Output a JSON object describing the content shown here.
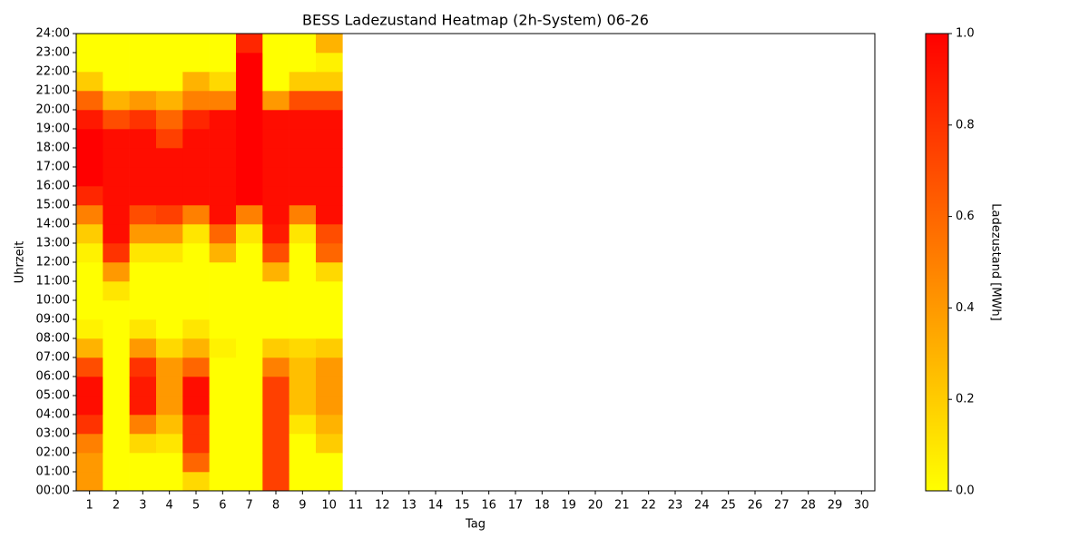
{
  "chart_data": {
    "type": "heatmap",
    "title": "BESS Ladezustand Heatmap (2h-System) 06-26",
    "xlabel": "Tag",
    "ylabel": "Uhrzeit",
    "x": [
      1,
      2,
      3,
      4,
      5,
      6,
      7,
      8,
      9,
      10,
      11,
      12,
      13,
      14,
      15,
      16,
      17,
      18,
      19,
      20,
      21,
      22,
      23,
      24,
      25,
      26,
      27,
      28,
      29,
      30
    ],
    "ylim": [
      0,
      24
    ],
    "yticks": [
      {
        "value": 0,
        "label": "00:00"
      },
      {
        "value": 1,
        "label": "01:00"
      },
      {
        "value": 2,
        "label": "02:00"
      },
      {
        "value": 3,
        "label": "03:00"
      },
      {
        "value": 4,
        "label": "04:00"
      },
      {
        "value": 5,
        "label": "05:00"
      },
      {
        "value": 6,
        "label": "06:00"
      },
      {
        "value": 7,
        "label": "07:00"
      },
      {
        "value": 8,
        "label": "08:00"
      },
      {
        "value": 9,
        "label": "09:00"
      },
      {
        "value": 10,
        "label": "10:00"
      },
      {
        "value": 11,
        "label": "11:00"
      },
      {
        "value": 12,
        "label": "12:00"
      },
      {
        "value": 13,
        "label": "13:00"
      },
      {
        "value": 14,
        "label": "14:00"
      },
      {
        "value": 15,
        "label": "15:00"
      },
      {
        "value": 16,
        "label": "16:00"
      },
      {
        "value": 17,
        "label": "17:00"
      },
      {
        "value": 18,
        "label": "18:00"
      },
      {
        "value": 19,
        "label": "19:00"
      },
      {
        "value": 20,
        "label": "20:00"
      },
      {
        "value": 21,
        "label": "21:00"
      },
      {
        "value": 22,
        "label": "22:00"
      },
      {
        "value": 23,
        "label": "23:00"
      },
      {
        "value": 24,
        "label": "24:00"
      }
    ],
    "colormap": "autumn_r",
    "colorbar": {
      "label": "Ladezustand [MWh]",
      "lim": [
        0,
        1
      ],
      "ticks": [
        {
          "value": 0,
          "label": "0.0"
        },
        {
          "value": 0.2,
          "label": "0.2"
        },
        {
          "value": 0.4,
          "label": "0.4"
        },
        {
          "value": 0.6,
          "label": "0.6"
        },
        {
          "value": 0.8,
          "label": "0.8"
        },
        {
          "value": 1,
          "label": "1.0"
        }
      ]
    },
    "values": [
      [
        0.4,
        0.4,
        0.5,
        0.8,
        0.95,
        0.95,
        0.7,
        0.3,
        0.05,
        0,
        0,
        0,
        0.05,
        0.2,
        0.5,
        0.85,
        1,
        1,
        1,
        0.9,
        0.6,
        0.2,
        0,
        0
      ],
      [
        0,
        0,
        0,
        0,
        0,
        0,
        0,
        0,
        0,
        0,
        0.1,
        0.4,
        0.8,
        0.95,
        0.95,
        0.95,
        0.95,
        0.95,
        0.95,
        0.7,
        0.3,
        0,
        0,
        0
      ],
      [
        0,
        0,
        0.15,
        0.5,
        0.9,
        0.9,
        0.8,
        0.4,
        0.1,
        0,
        0,
        0,
        0.1,
        0.4,
        0.7,
        0.95,
        0.95,
        0.95,
        0.95,
        0.8,
        0.4,
        0,
        0,
        0
      ],
      [
        0,
        0,
        0.1,
        0.25,
        0.4,
        0.4,
        0.4,
        0.15,
        0,
        0,
        0,
        0,
        0.1,
        0.4,
        0.75,
        0.95,
        0.95,
        0.95,
        0.75,
        0.6,
        0.3,
        0,
        0,
        0
      ],
      [
        0.15,
        0.6,
        0.8,
        0.8,
        0.95,
        0.95,
        0.6,
        0.3,
        0.1,
        0,
        0,
        0,
        0,
        0.1,
        0.5,
        0.95,
        0.95,
        0.95,
        0.95,
        0.85,
        0.5,
        0.3,
        0,
        0
      ],
      [
        0,
        0,
        0,
        0,
        0,
        0,
        0,
        0.05,
        0,
        0,
        0,
        0,
        0.3,
        0.6,
        0.95,
        0.95,
        0.95,
        0.95,
        0.95,
        0.95,
        0.5,
        0.15,
        0,
        0
      ],
      [
        0,
        0,
        0,
        0,
        0,
        0,
        0,
        0,
        0,
        0,
        0,
        0,
        0,
        0.1,
        0.5,
        1,
        1,
        1,
        1,
        1,
        1,
        1,
        1,
        0.85
      ],
      [
        0.75,
        0.75,
        0.75,
        0.75,
        0.75,
        0.75,
        0.5,
        0.2,
        0,
        0,
        0,
        0.3,
        0.7,
        0.9,
        0.95,
        0.95,
        0.95,
        0.95,
        0.95,
        0.95,
        0.4,
        0,
        0,
        0
      ],
      [
        0,
        0,
        0,
        0.1,
        0.25,
        0.25,
        0.25,
        0.15,
        0,
        0,
        0,
        0,
        0,
        0.1,
        0.5,
        0.95,
        0.95,
        0.95,
        0.95,
        0.95,
        0.7,
        0.2,
        0,
        0
      ],
      [
        0,
        0,
        0.2,
        0.3,
        0.4,
        0.4,
        0.4,
        0.2,
        0,
        0,
        0,
        0.15,
        0.6,
        0.7,
        0.95,
        0.95,
        0.95,
        0.95,
        0.95,
        0.95,
        0.7,
        0.2,
        0.05,
        0.3
      ],
      null,
      null,
      null,
      null,
      null,
      null,
      null,
      null,
      null,
      null,
      null,
      null,
      null,
      null,
      null,
      null,
      null,
      null,
      null,
      null
    ]
  }
}
